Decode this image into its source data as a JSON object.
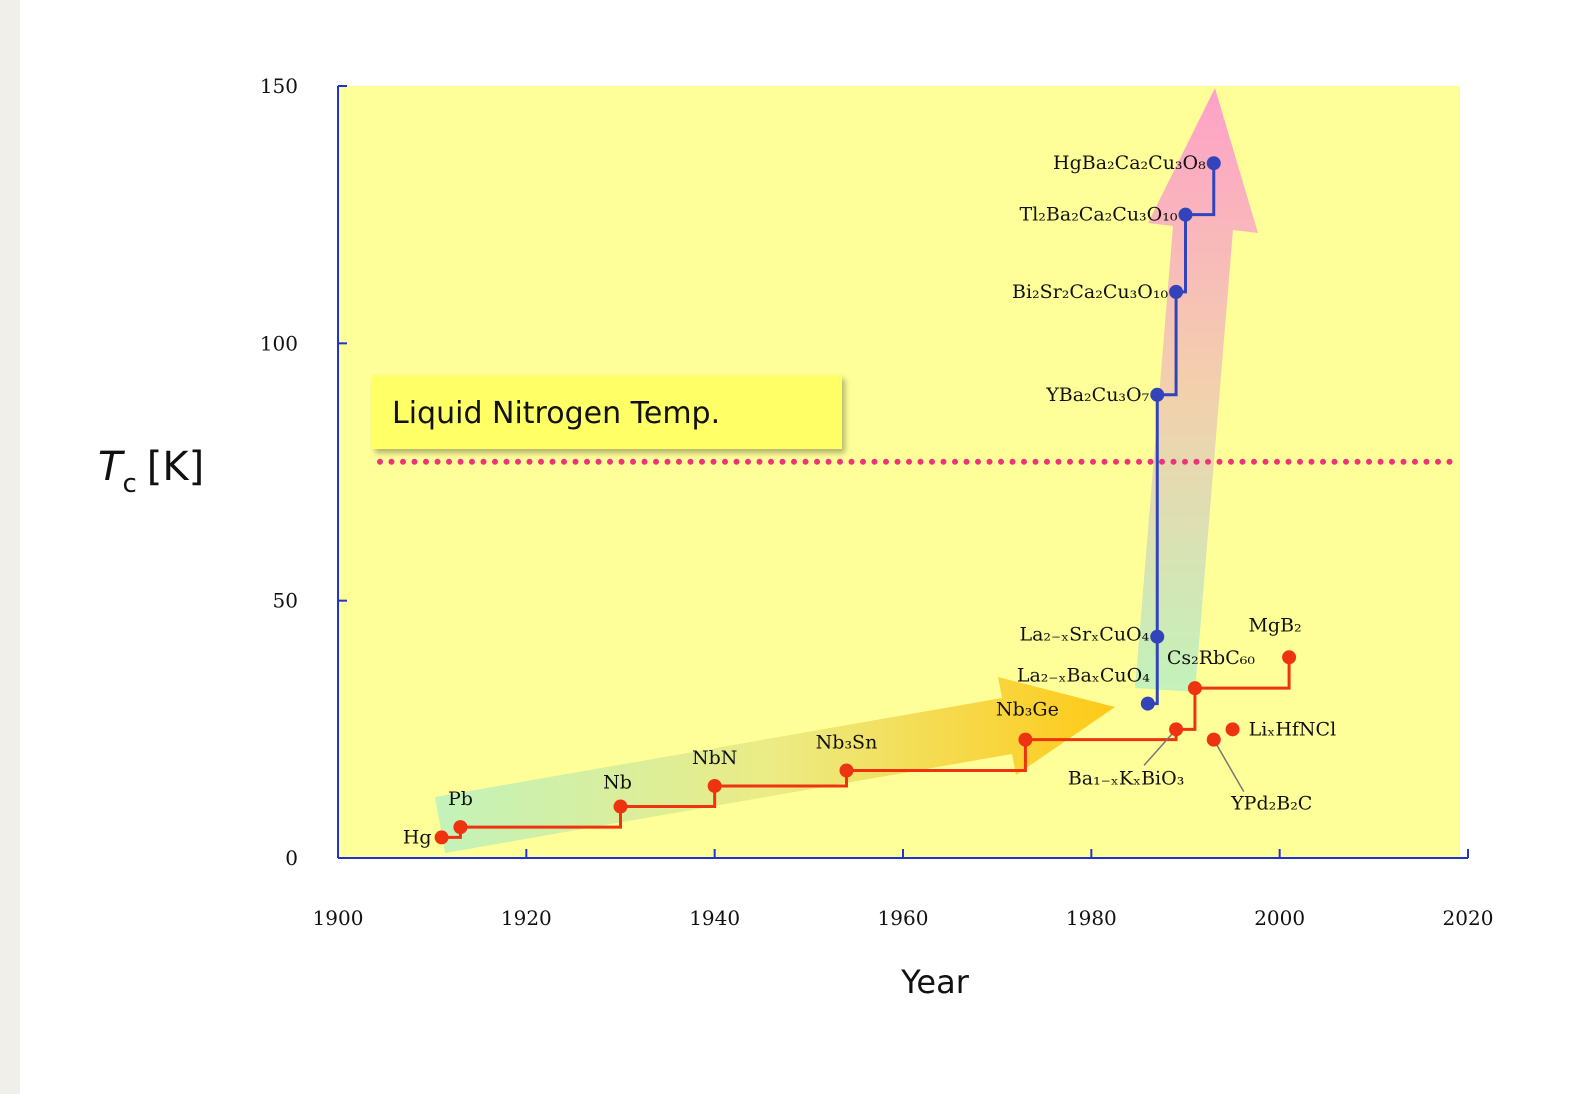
{
  "chart_data": {
    "type": "step-scatter",
    "y_label_parts": [
      "T",
      "c",
      "[K]"
    ],
    "x_label": "Year",
    "xlim": [
      1900,
      2020
    ],
    "xticks": [
      1900,
      1920,
      1940,
      1960,
      1980,
      2000,
      2020
    ],
    "ylim": [
      0,
      150
    ],
    "yticks": [
      0,
      50,
      100,
      150
    ],
    "reference_line": {
      "value": 77,
      "label": "Liquid Nitrogen Temp.",
      "color": "#ee3377"
    },
    "series": [
      {
        "color": "#ee3311",
        "line": "step",
        "x": [
          1911,
          1913,
          1930,
          1940,
          1954,
          1973,
          1989,
          1991,
          2001
        ],
        "values": [
          4,
          6,
          10,
          14,
          17,
          23,
          25,
          33,
          39
        ],
        "point_labels": [
          "Hg",
          "Pb",
          "Nb",
          "NbN",
          "Nb₃Sn",
          "Nb₃Ge",
          "Ba₁₋ₓKₓBiO₃",
          "Cs₂RbC₆₀",
          "MgB₂"
        ]
      },
      {
        "color": "#ee3311",
        "line": "none",
        "x": [
          1995,
          1993
        ],
        "values": [
          25,
          23
        ],
        "point_labels": [
          "LiₓHfNCl",
          "YPd₂B₂C"
        ]
      },
      {
        "color": "#3344bb",
        "line": "step",
        "x": [
          1986,
          1987,
          1987,
          1989,
          1990,
          1993
        ],
        "values": [
          30,
          43,
          90,
          110,
          125,
          135
        ],
        "point_labels": [
          "La₂₋ₓBaₓCuO₄",
          "La₂₋ₓSrₓCuO₄",
          "YBa₂Cu₃O₇",
          "Bi₂Sr₂Ca₂Cu₃O₁₀",
          "Tl₂Ba₂Ca₂Cu₃O₁₀",
          "HgBa₂Ca₂Cu₃O₈"
        ]
      }
    ]
  }
}
